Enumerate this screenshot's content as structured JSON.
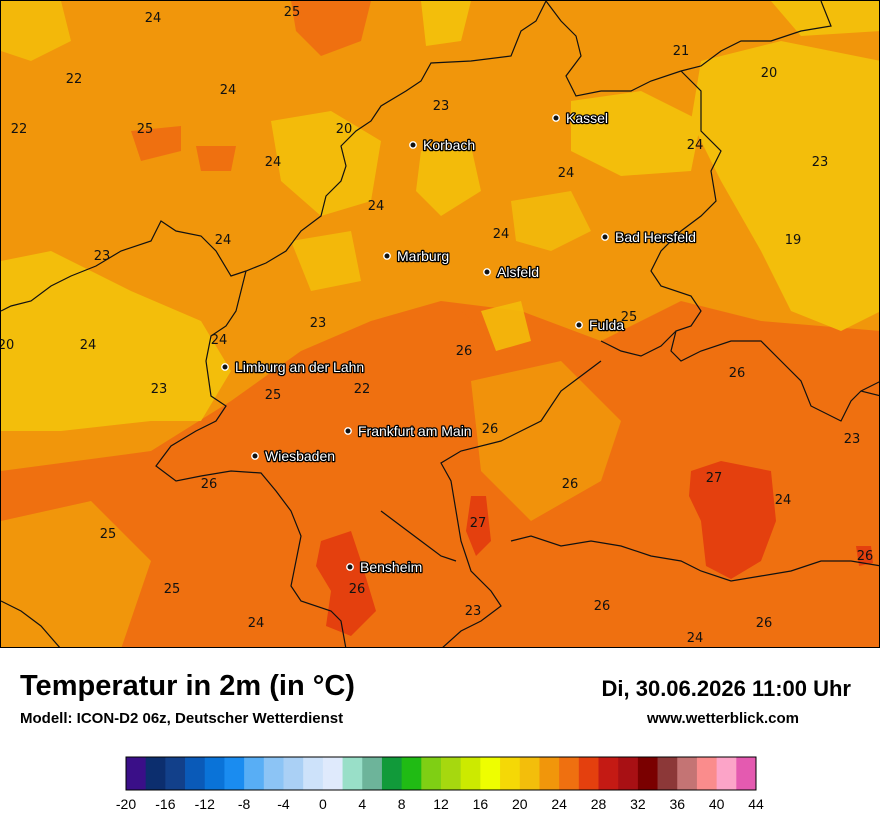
{
  "title": "Temperatur in 2m (in °C)",
  "subtitle": "Modell: ICON-D2 06z, Deutscher Wetterdienst",
  "datetime": "Di, 30.06.2026 11:00 Uhr",
  "website": "www.wetterblick.com",
  "cities": [
    {
      "name": "Kassel"
    },
    {
      "name": "Korbach"
    },
    {
      "name": "Bad Hersfeld"
    },
    {
      "name": "Marburg"
    },
    {
      "name": "Alsfeld"
    },
    {
      "name": "Fulda"
    },
    {
      "name": "Limburg an der Lahn"
    },
    {
      "name": "Frankfurt am Main"
    },
    {
      "name": "Wiesbaden"
    },
    {
      "name": "Bensheim"
    }
  ],
  "temperature_labels": [
    "24",
    "25",
    "22",
    "24",
    "22",
    "25",
    "20",
    "23",
    "24",
    "21",
    "20",
    "24",
    "23",
    "24",
    "24",
    "24",
    "19",
    "23",
    "24",
    "23",
    "25",
    "24",
    "20",
    "24",
    "26",
    "26",
    "22",
    "23",
    "25",
    "23",
    "26",
    "26",
    "26",
    "27",
    "24",
    "25",
    "27",
    "25",
    "26",
    "23",
    "26",
    "26",
    "24",
    "26"
  ],
  "legend": {
    "ticks": [
      "-20",
      "-16",
      "-12",
      "-8",
      "-4",
      "0",
      "4",
      "8",
      "12",
      "16",
      "20",
      "24",
      "28",
      "32",
      "36",
      "40",
      "44"
    ],
    "colors": [
      "#3a0f88",
      "#0c2e6e",
      "#12408a",
      "#0a5ab8",
      "#0a73d8",
      "#1a8cf0",
      "#58aef5",
      "#8cc4f5",
      "#aad0f5",
      "#cde2fa",
      "#dfeafc",
      "#99dfc8",
      "#6db49a",
      "#119a3a",
      "#20bb14",
      "#7fcf14",
      "#a6d80f",
      "#ccea00",
      "#eefe00",
      "#f5d806",
      "#f3be0b",
      "#f1960b",
      "#ef7010",
      "#e4400e",
      "#c41a14",
      "#a81014",
      "#7a0000",
      "#8c3838",
      "#c47474",
      "#fa8c8c",
      "#fca4c8",
      "#e45ab0"
    ]
  },
  "map_colors": {
    "deep_orange": "#ef7010",
    "orange": "#f1960b",
    "yellow": "#f3be0b",
    "red_orange": "#e4400e"
  }
}
